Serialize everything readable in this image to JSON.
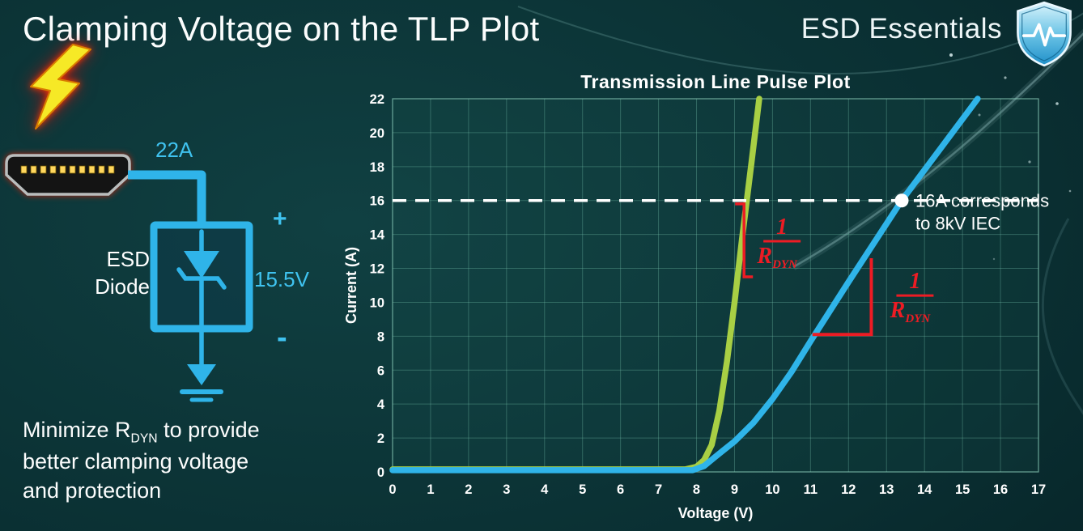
{
  "slide": {
    "title": "Clamping Voltage on the TLP Plot",
    "brand": "ESD Essentials",
    "colors": {
      "accent_cyan": "#2fb4e9",
      "curve_green": "#a8cf44",
      "curve_blue": "#2fb4e9",
      "annotation_red": "#ed1c24",
      "background_center": "#104042",
      "background_edge": "#03181c",
      "text": "#ffffff"
    }
  },
  "diagram": {
    "surge_current_label": "22A",
    "plus_label": "+",
    "clamp_voltage_label": "15.5V",
    "minus_label": "-",
    "component_name_line1": "ESD",
    "component_name_line2": "Diode",
    "icons": [
      "lightning-bolt-icon",
      "hdmi-connector-icon",
      "zener-diode-symbol",
      "ground-symbol"
    ]
  },
  "footer_note": {
    "prefix": "Minimize R",
    "subscript": "DYN",
    "suffix": " to provide",
    "line2": "better clamping voltage",
    "line3": "and protection"
  },
  "chart_data": {
    "type": "line",
    "title": "Transmission Line Pulse Plot",
    "xlabel": "Voltage (V)",
    "ylabel": "Current (A)",
    "xlim": [
      0,
      17
    ],
    "ylim": [
      0,
      22
    ],
    "xticks": [
      0,
      1,
      2,
      3,
      4,
      5,
      6,
      7,
      8,
      9,
      10,
      11,
      12,
      13,
      14,
      15,
      16,
      17
    ],
    "yticks": [
      0,
      2,
      4,
      6,
      8,
      10,
      12,
      14,
      16,
      18,
      20,
      22
    ],
    "grid": true,
    "legend": "none",
    "series": [
      {
        "name": "green-curve-low-rdyn",
        "color": "#a8cf44",
        "points": [
          [
            0,
            0.15
          ],
          [
            7.7,
            0.15
          ],
          [
            8.0,
            0.3
          ],
          [
            8.2,
            0.7
          ],
          [
            8.4,
            1.6
          ],
          [
            8.6,
            3.6
          ],
          [
            8.8,
            6.5
          ],
          [
            9.0,
            10.0
          ],
          [
            9.2,
            13.8
          ],
          [
            9.45,
            18.3
          ],
          [
            9.65,
            22
          ]
        ]
      },
      {
        "name": "blue-curve-high-rdyn",
        "color": "#2fb4e9",
        "points": [
          [
            0,
            0.1
          ],
          [
            7.9,
            0.1
          ],
          [
            8.2,
            0.35
          ],
          [
            8.5,
            0.9
          ],
          [
            9.0,
            1.8
          ],
          [
            9.5,
            2.9
          ],
          [
            10.0,
            4.3
          ],
          [
            10.5,
            5.9
          ],
          [
            11.0,
            7.7
          ],
          [
            12.0,
            11.2
          ],
          [
            13.4,
            16.0
          ],
          [
            15.4,
            22
          ]
        ]
      }
    ],
    "reference_line": {
      "y": 16,
      "color": "#ffffff",
      "style": "dashed"
    },
    "marker": {
      "x": 13.4,
      "y": 16,
      "color": "#ffffff"
    },
    "marker_label_line1": "16A corresponds",
    "marker_label_line2": "to 8kV IEC",
    "annotations": [
      {
        "kind": "bracket",
        "name": "green-slope-bracket",
        "x": 9.25,
        "y1": 11.5,
        "y2": 15.8,
        "color": "#ed1c24"
      },
      {
        "kind": "fraction",
        "name": "green-rdyn-label",
        "x": 10.25,
        "y": 13.6,
        "numerator": "1",
        "denominator": "R",
        "denominator_sub": "DYN",
        "color": "#ed1c24"
      },
      {
        "kind": "legs",
        "name": "blue-slope-legs",
        "x1": 11.05,
        "y1": 8.1,
        "x2": 12.6,
        "y2": 12.6,
        "color": "#ed1c24"
      },
      {
        "kind": "fraction",
        "name": "blue-rdyn-label",
        "x": 13.75,
        "y": 10.4,
        "numerator": "1",
        "denominator": "R",
        "denominator_sub": "DYN",
        "color": "#ed1c24"
      }
    ]
  }
}
